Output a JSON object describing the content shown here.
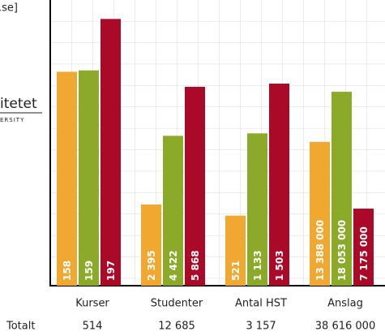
{
  "header_fragments": {
    "top": ".se]",
    "logo": "itetet",
    "logo_sub": "ERSITY"
  },
  "chart_data": {
    "type": "bar",
    "categories": [
      "Kurser",
      "Studenter",
      "Antal HST",
      "Anslag"
    ],
    "ylims": [
      [
        0,
        211
      ],
      [
        0,
        8430
      ],
      [
        0,
        2125
      ],
      [
        0,
        26600000
      ]
    ],
    "series": [
      {
        "color": "#f0a830",
        "values": [
          158,
          2395,
          521,
          13388000
        ],
        "value_labels": [
          "158",
          "2 395",
          "521",
          "13 388 000"
        ]
      },
      {
        "color": "#8caa2a",
        "values": [
          159,
          4422,
          1133,
          18053000
        ],
        "value_labels": [
          "159",
          "4 422",
          "1 133",
          "18 053 000"
        ]
      },
      {
        "color": "#aa0a28",
        "values": [
          197,
          5868,
          1503,
          7175000
        ],
        "value_labels": [
          "197",
          "5 868",
          "1 503",
          "7 175 000"
        ]
      }
    ],
    "totals": {
      "label": "Totalt",
      "values": [
        514,
        12685,
        3157,
        38616000
      ],
      "value_labels": [
        "514",
        "12 685",
        "3 157",
        "38 616 000"
      ]
    },
    "grid": true
  }
}
